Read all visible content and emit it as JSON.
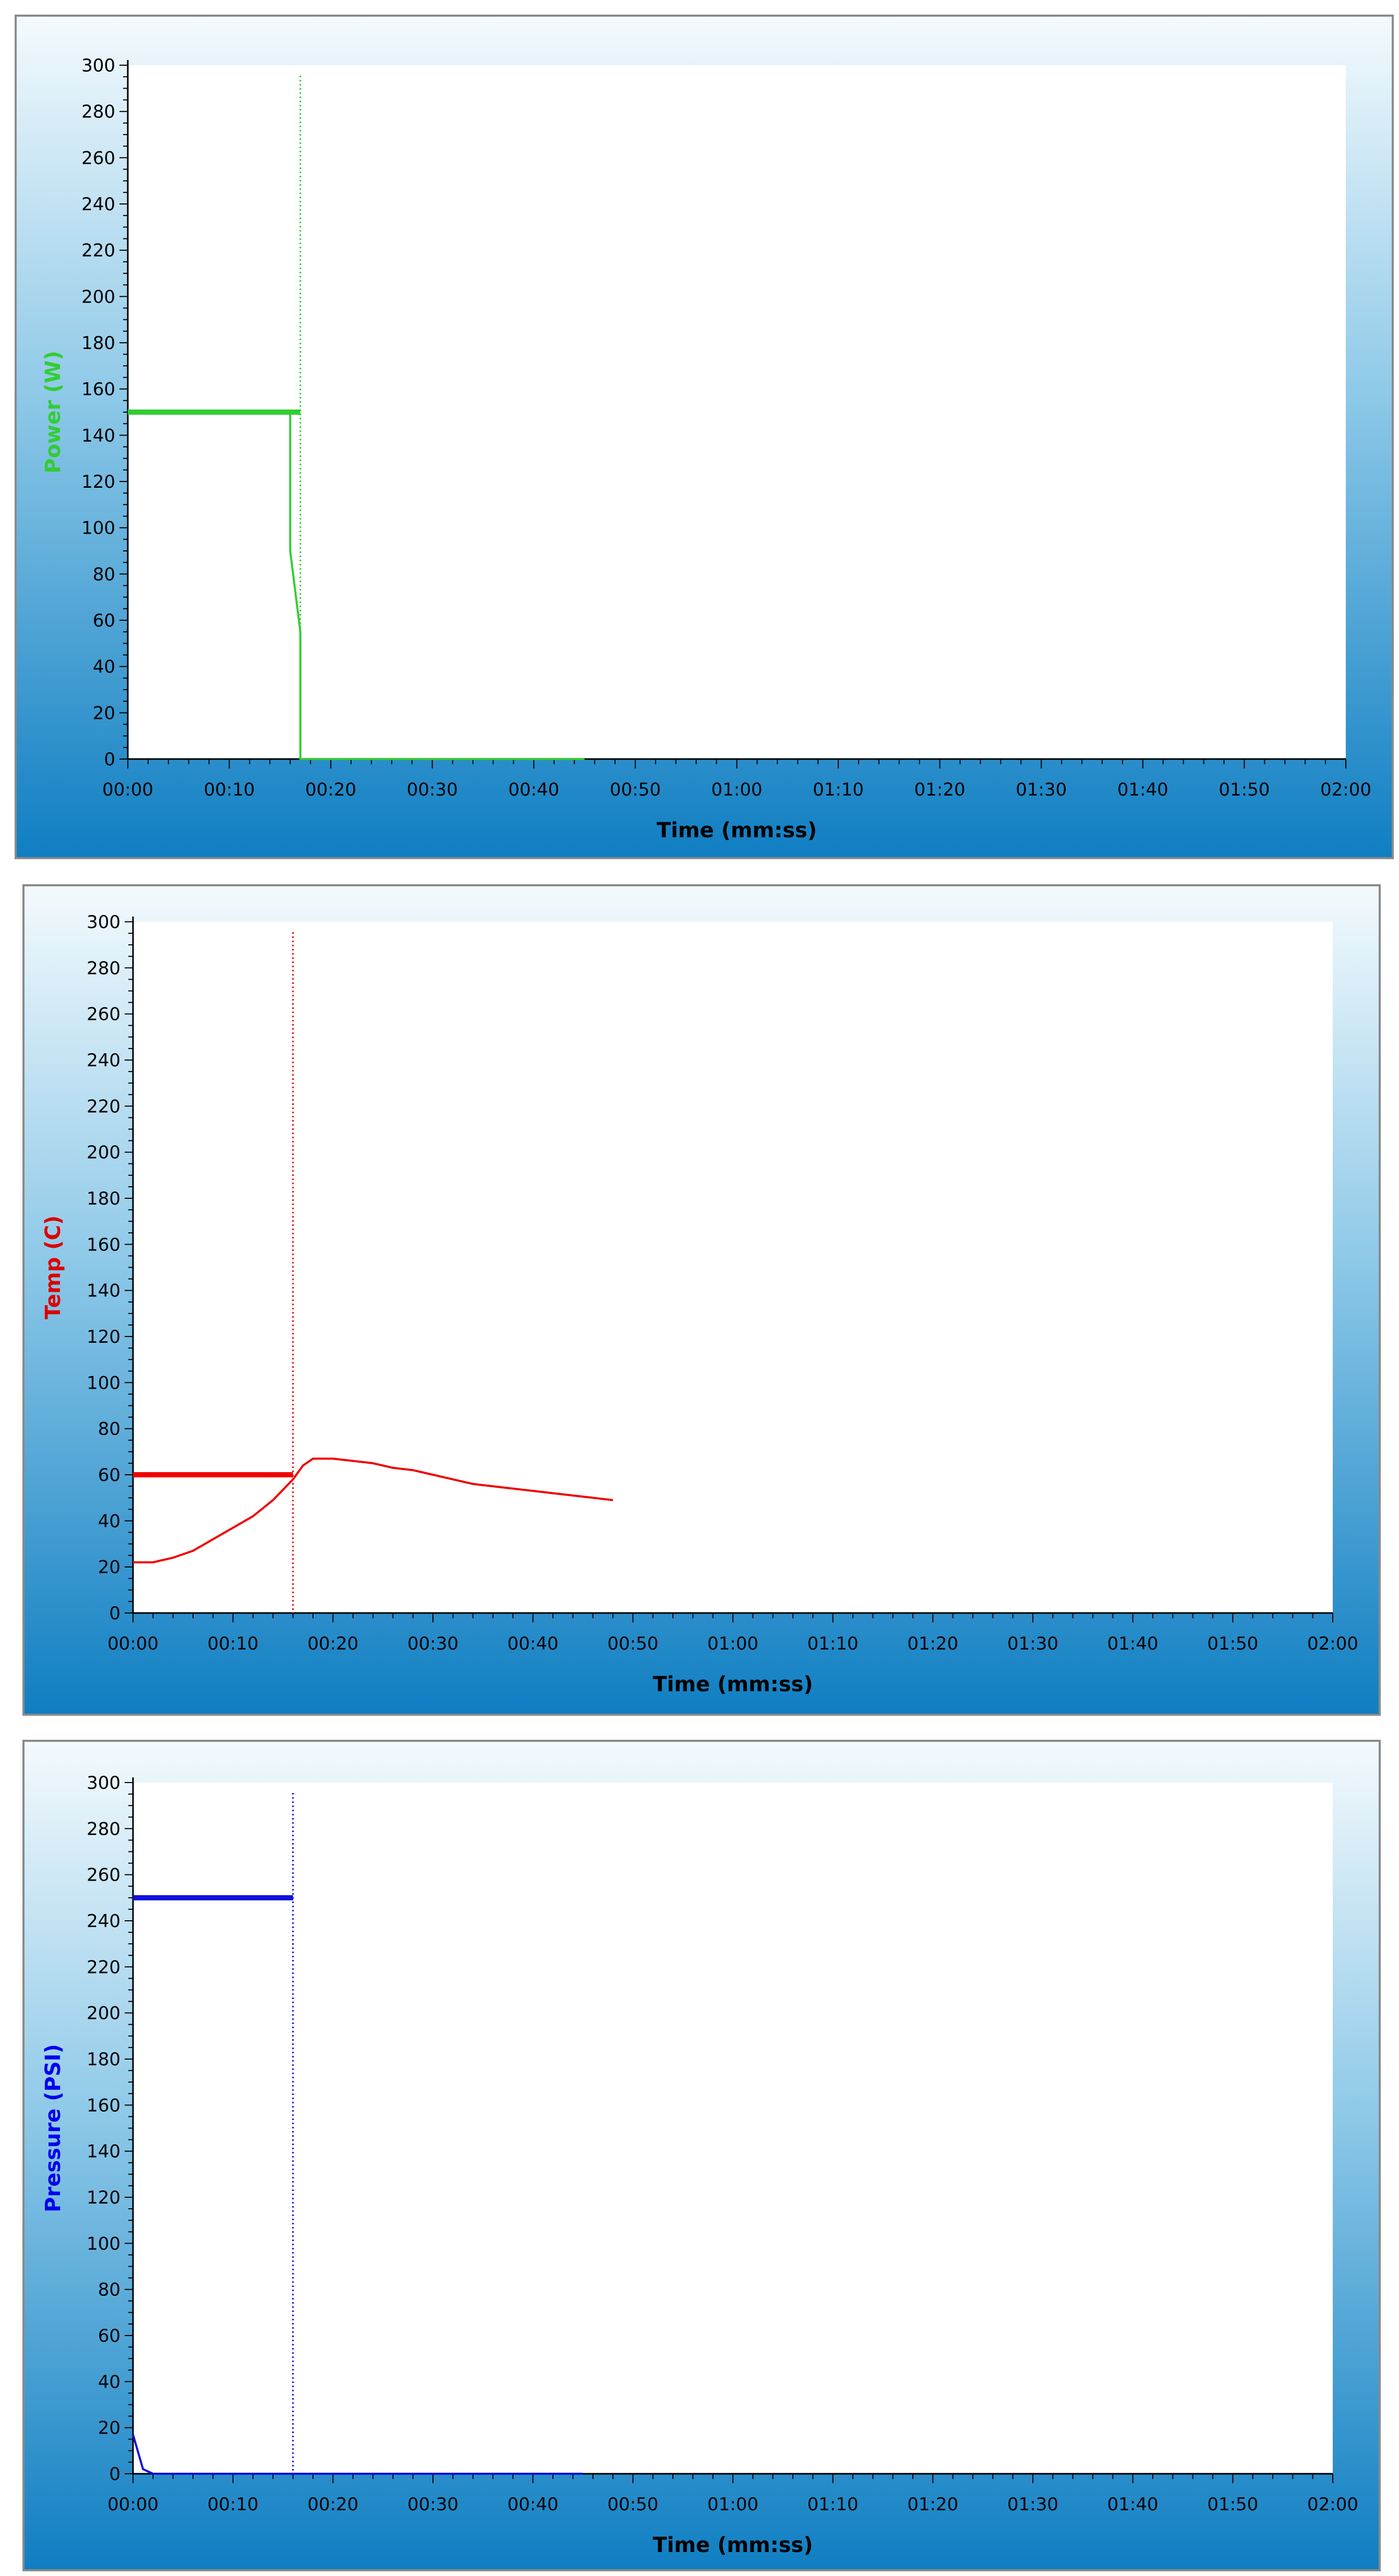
{
  "chart_data": [
    {
      "type": "line",
      "title": "",
      "xlabel": "Time (mm:ss)",
      "ylabel": "Power (W)",
      "ylabel_color": "#33cc33",
      "color": "#33cc33",
      "ylim": [
        0,
        300
      ],
      "xlim": [
        "00:00",
        "02:00"
      ],
      "x_tick_labels": [
        "00:00",
        "00:10",
        "00:20",
        "00:30",
        "00:40",
        "00:50",
        "01:00",
        "01:10",
        "01:20",
        "01:30",
        "01:40",
        "01:50",
        "02:00"
      ],
      "y_tick_labels": [
        "0",
        "20",
        "40",
        "60",
        "80",
        "100",
        "120",
        "140",
        "160",
        "180",
        "200",
        "220",
        "240",
        "260",
        "280",
        "300"
      ],
      "setpoint": {
        "value": 150,
        "x": [
          "00:00",
          "00:17"
        ]
      },
      "cursor_x": "00:17",
      "series": [
        {
          "x": [
            "00:00",
            "00:16",
            "00:16",
            "00:16",
            "00:16",
            "00:17",
            "00:17",
            "00:17",
            "00:45"
          ],
          "values": [
            150,
            150,
            146,
            95,
            90,
            55,
            20,
            0,
            0
          ]
        }
      ]
    },
    {
      "type": "line",
      "title": "",
      "xlabel": "Time (mm:ss)",
      "ylabel": "Temp (C)",
      "ylabel_color": "#dd0000",
      "color": "#ee0000",
      "ylim": [
        0,
        300
      ],
      "xlim": [
        "00:00",
        "02:00"
      ],
      "x_tick_labels": [
        "00:00",
        "00:10",
        "00:20",
        "00:30",
        "00:40",
        "00:50",
        "01:00",
        "01:10",
        "01:20",
        "01:30",
        "01:40",
        "01:50",
        "02:00"
      ],
      "y_tick_labels": [
        "0",
        "20",
        "40",
        "60",
        "80",
        "100",
        "120",
        "140",
        "160",
        "180",
        "200",
        "220",
        "240",
        "260",
        "280",
        "300"
      ],
      "setpoint": {
        "value": 60,
        "x": [
          "00:00",
          "00:16"
        ]
      },
      "cursor_x": "00:16",
      "series": [
        {
          "x": [
            "00:00",
            "00:02",
            "00:04",
            "00:06",
            "00:08",
            "00:10",
            "00:12",
            "00:14",
            "00:16",
            "00:17",
            "00:18",
            "00:20",
            "00:22",
            "00:24",
            "00:26",
            "00:28",
            "00:30",
            "00:32",
            "00:34",
            "00:36",
            "00:38",
            "00:40",
            "00:42",
            "00:44",
            "00:46",
            "00:48"
          ],
          "values": [
            22,
            22,
            24,
            27,
            32,
            37,
            42,
            49,
            58,
            64,
            67,
            67,
            66,
            65,
            63,
            62,
            60,
            58,
            56,
            55,
            54,
            53,
            52,
            51,
            50,
            49
          ]
        }
      ]
    },
    {
      "type": "line",
      "title": "",
      "xlabel": "Time (mm:ss)",
      "ylabel": "Pressure (PSI)",
      "ylabel_color": "#0000ee",
      "color": "#1111dd",
      "ylim": [
        0,
        300
      ],
      "xlim": [
        "00:00",
        "02:00"
      ],
      "x_tick_labels": [
        "00:00",
        "00:10",
        "00:20",
        "00:30",
        "00:40",
        "00:50",
        "01:00",
        "01:10",
        "01:20",
        "01:30",
        "01:40",
        "01:50",
        "02:00"
      ],
      "y_tick_labels": [
        "0",
        "20",
        "40",
        "60",
        "80",
        "100",
        "120",
        "140",
        "160",
        "180",
        "200",
        "220",
        "240",
        "260",
        "280",
        "300"
      ],
      "setpoint": {
        "value": 250,
        "x": [
          "00:00",
          "00:16"
        ]
      },
      "cursor_x": "00:16",
      "series": [
        {
          "x": [
            "00:00",
            "00:01",
            "00:02",
            "00:45"
          ],
          "values": [
            17,
            2,
            0,
            0
          ]
        }
      ]
    }
  ]
}
